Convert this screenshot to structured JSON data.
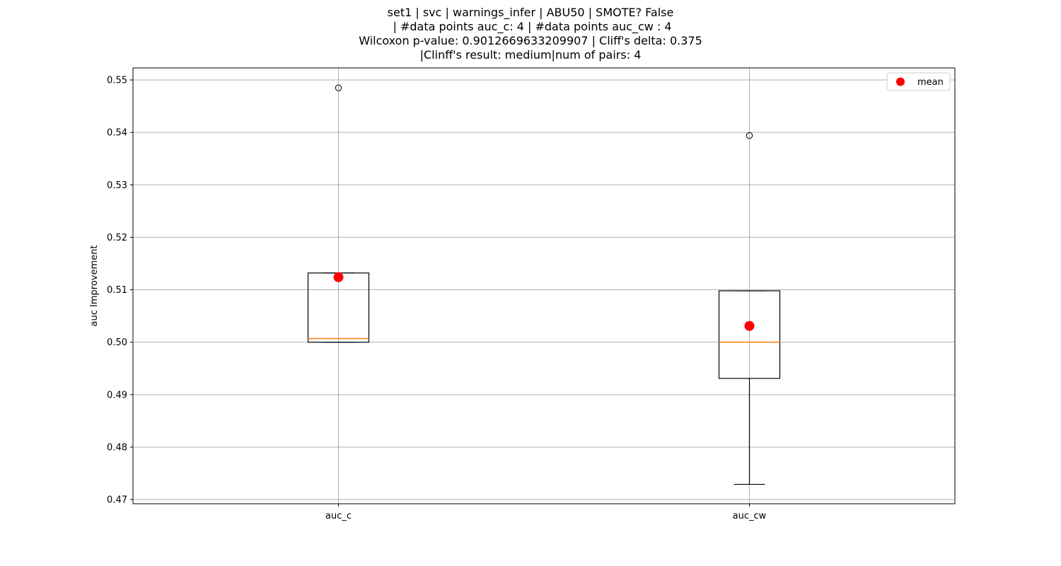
{
  "chart_data": {
    "type": "box",
    "title_lines": [
      "set1 | svc | warnings_infer | ABU50 | SMOTE? False",
      " | #data points auc_c: 4 | #data points auc_cw : 4",
      "Wilcoxon p-value: 0.9012669633209907 | Cliff's delta: 0.375",
      "|Clinff's result: medium|num of pairs: 4"
    ],
    "xlabel": "",
    "ylabel": "auc Improvement",
    "ylim": [
      0.4692,
      0.5523
    ],
    "yticks": [
      0.47,
      0.48,
      0.49,
      0.5,
      0.51,
      0.52,
      0.53,
      0.54,
      0.55
    ],
    "ytick_labels": [
      "0.47",
      "0.48",
      "0.49",
      "0.50",
      "0.51",
      "0.52",
      "0.53",
      "0.54",
      "0.55"
    ],
    "grid": true,
    "legend": {
      "entries": [
        {
          "label": "mean",
          "color": "#ff0000",
          "marker": "circle"
        }
      ],
      "placement": "top-right"
    },
    "colors": {
      "median": "#ff7f0e",
      "mean": "#ff0000",
      "box": "#000000",
      "grid": "#b0b0b0"
    },
    "categories": [
      "auc_c",
      "auc_cw"
    ],
    "boxes": [
      {
        "name": "auc_c",
        "whisker_low": 0.5,
        "q1": 0.5,
        "median": 0.5007,
        "q3": 0.5132,
        "whisker_high": 0.5132,
        "outliers": [
          0.5485
        ],
        "mean": 0.5124
      },
      {
        "name": "auc_cw",
        "whisker_low": 0.4729,
        "q1": 0.4931,
        "median": 0.5,
        "q3": 0.5098,
        "whisker_high": 0.5098,
        "outliers": [
          0.5394
        ],
        "mean": 0.5031
      }
    ]
  }
}
